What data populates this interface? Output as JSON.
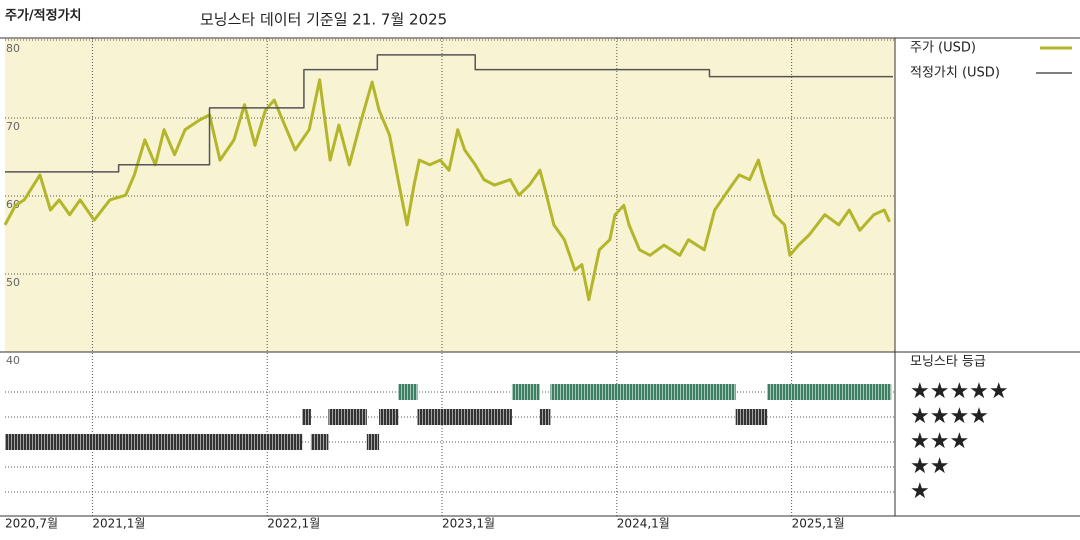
{
  "chart_data": {
    "type": "line",
    "title": "주가/적정가치",
    "subtitle": "모닝스타 데이터 기준일 21. 7월 2025",
    "background": "#f7f3d3",
    "grid": true,
    "xlim": [
      2020.5,
      2025.58
    ],
    "xticks": [
      {
        "value": 2020.5,
        "label": "2020,7월"
      },
      {
        "value": 2021,
        "label": "2021,1월"
      },
      {
        "value": 2022,
        "label": "2022,1월"
      },
      {
        "value": 2023,
        "label": "2023,1월"
      },
      {
        "value": 2024,
        "label": "2024,1월"
      },
      {
        "value": 2025,
        "label": "2025,1월"
      }
    ],
    "ylim": [
      40,
      80
    ],
    "yticks": [
      40,
      50,
      60,
      70,
      80
    ],
    "series": [
      {
        "name": "주가 (USD)",
        "color": "#b3b62a",
        "x": [
          2020.5,
          2020.56,
          2020.61,
          2020.7,
          2020.76,
          2020.81,
          2020.87,
          2020.93,
          2021.01,
          2021.1,
          2021.19,
          2021.24,
          2021.3,
          2021.36,
          2021.41,
          2021.47,
          2021.53,
          2021.61,
          2021.67,
          2021.73,
          2021.81,
          2021.87,
          2021.93,
          2021.99,
          2022.04,
          2022.1,
          2022.16,
          2022.24,
          2022.3,
          2022.36,
          2022.41,
          2022.47,
          2022.53,
          2022.6,
          2022.64,
          2022.7,
          2022.76,
          2022.8,
          2022.84,
          2022.87,
          2022.93,
          2022.99,
          2023.04,
          2023.09,
          2023.13,
          2023.19,
          2023.24,
          2023.3,
          2023.39,
          2023.44,
          2023.5,
          2023.56,
          2023.59,
          2023.64,
          2023.7,
          2023.76,
          2023.8,
          2023.84,
          2023.9,
          2023.96,
          2023.99,
          2024.04,
          2024.07,
          2024.13,
          2024.19,
          2024.27,
          2024.36,
          2024.41,
          2024.5,
          2024.56,
          2024.64,
          2024.7,
          2024.76,
          2024.81,
          2024.84,
          2024.9,
          2024.96,
          2024.99,
          2025.04,
          2025.1,
          2025.19,
          2025.27,
          2025.33,
          2025.39,
          2025.47,
          2025.53,
          2025.56
        ],
        "values": [
          56.3,
          58.8,
          59.5,
          62.7,
          58.2,
          59.5,
          57.6,
          59.5,
          56.9,
          59.5,
          60.1,
          62.7,
          67.2,
          64.0,
          68.5,
          65.3,
          68.5,
          69.7,
          70.4,
          64.6,
          67.2,
          71.7,
          66.5,
          71.0,
          72.3,
          69.1,
          65.9,
          68.5,
          74.9,
          64.6,
          69.1,
          64.0,
          69.1,
          74.6,
          71.0,
          67.8,
          60.8,
          56.3,
          61.4,
          64.6,
          64.0,
          64.6,
          63.3,
          68.5,
          65.9,
          64.0,
          62.1,
          61.4,
          62.1,
          60.1,
          61.4,
          63.3,
          60.8,
          56.3,
          54.4,
          50.5,
          51.2,
          46.7,
          53.1,
          54.4,
          57.6,
          58.8,
          56.3,
          53.1,
          52.4,
          53.7,
          52.4,
          54.4,
          53.1,
          58.2,
          60.8,
          62.7,
          62.1,
          64.6,
          62.1,
          57.6,
          56.3,
          52.4,
          53.7,
          55.0,
          57.6,
          56.3,
          58.2,
          55.6,
          57.6,
          58.2,
          56.7
        ]
      },
      {
        "name": "적정가치 (USD)",
        "color": "#555555",
        "step": true,
        "x": [
          2020.5,
          2021.15,
          2021.67,
          2022.21,
          2022.63,
          2023.19,
          2024.53
        ],
        "values": [
          63.1,
          64.0,
          71.3,
          76.2,
          78.1,
          76.2,
          75.3
        ]
      }
    ],
    "ratings": {
      "title": "모닝스타 등급",
      "levels": [
        "★★★★★",
        "★★★★",
        "★★★",
        "★★",
        "★"
      ],
      "colors": [
        "#3d7f63",
        "#333333",
        "#333333",
        "#333333",
        "#333333"
      ],
      "periods": [
        {
          "start": 2020.5,
          "end": 2022.2,
          "stars": 3
        },
        {
          "start": 2022.2,
          "end": 2022.25,
          "stars": 4
        },
        {
          "start": 2022.25,
          "end": 2022.35,
          "stars": 3
        },
        {
          "start": 2022.35,
          "end": 2022.57,
          "stars": 4
        },
        {
          "start": 2022.57,
          "end": 2022.64,
          "stars": 3
        },
        {
          "start": 2022.64,
          "end": 2022.75,
          "stars": 4
        },
        {
          "start": 2022.75,
          "end": 2022.86,
          "stars": 5
        },
        {
          "start": 2022.86,
          "end": 2023.4,
          "stars": 4
        },
        {
          "start": 2023.4,
          "end": 2023.56,
          "stars": 5
        },
        {
          "start": 2023.56,
          "end": 2023.62,
          "stars": 4
        },
        {
          "start": 2023.62,
          "end": 2024.68,
          "stars": 5
        },
        {
          "start": 2024.68,
          "end": 2024.86,
          "stars": 4
        },
        {
          "start": 2024.86,
          "end": 2025.57,
          "stars": 5
        }
      ]
    }
  }
}
